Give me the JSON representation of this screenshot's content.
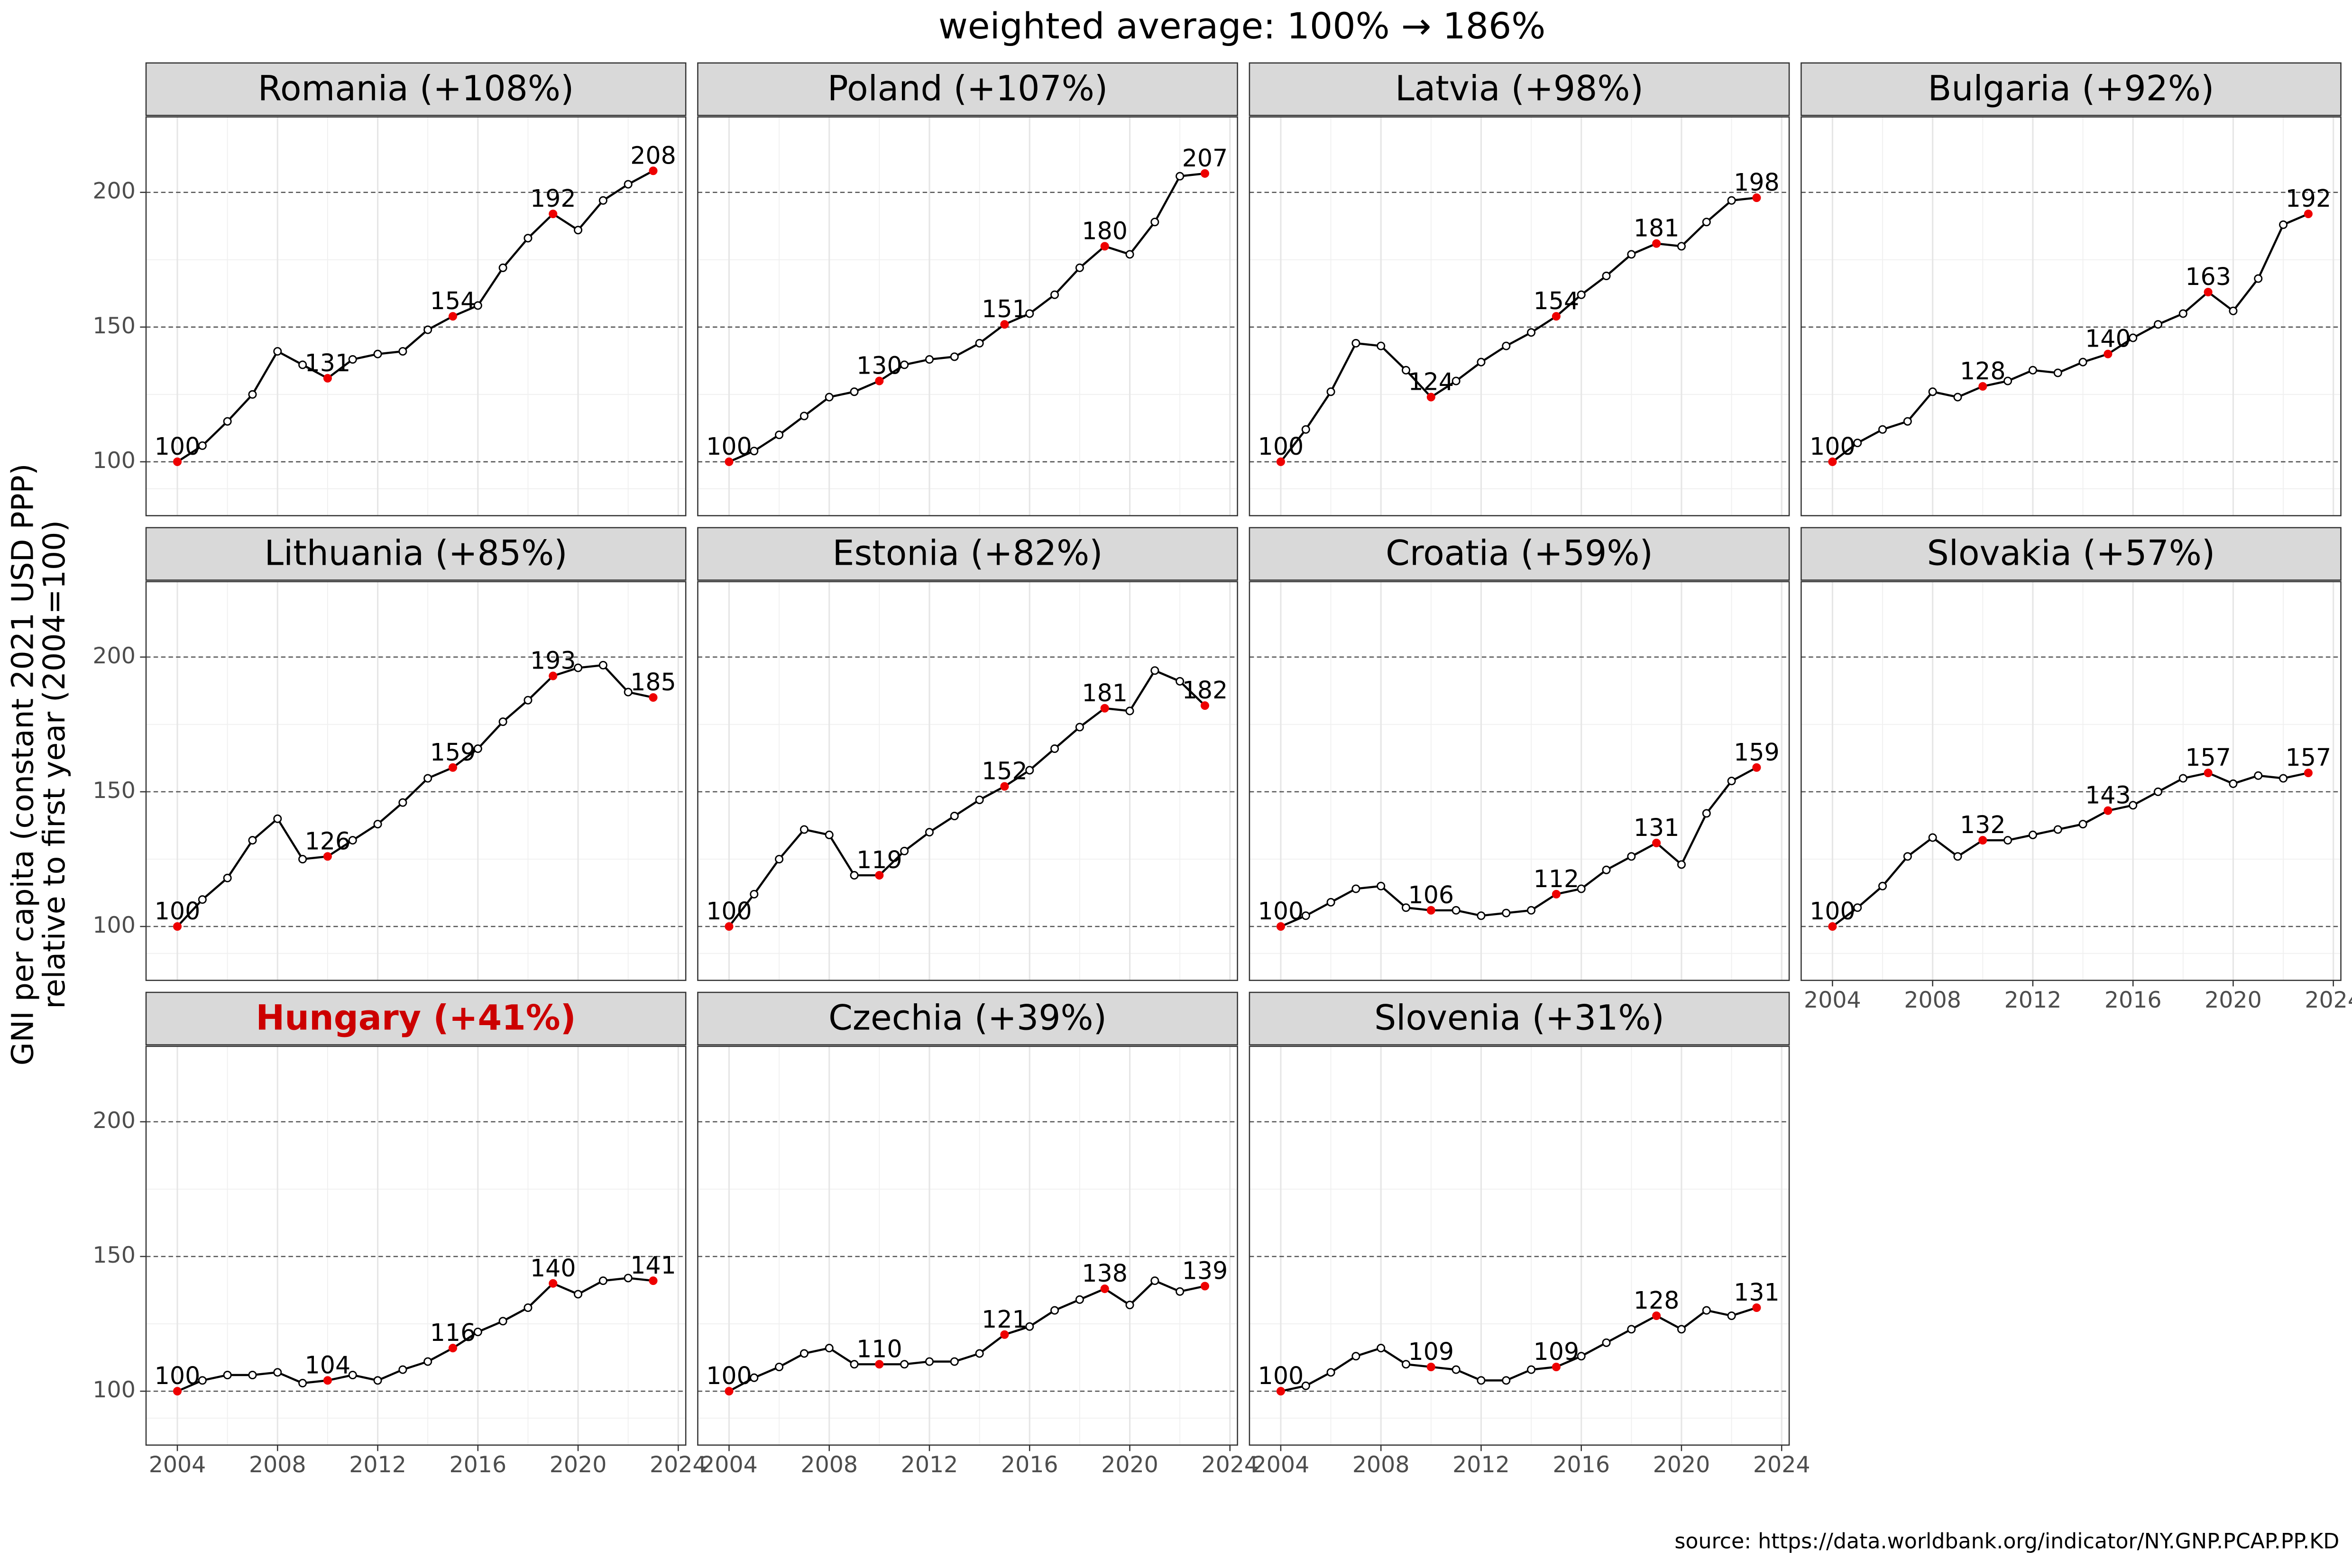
{
  "title": "weighted average: 100% → 186%",
  "ylabel": [
    "GNI per capita (constant 2021 USD PPP)",
    "relative to first year (2004=100)"
  ],
  "source": "source: https://data.worldbank.org/indicator/NY.GNP.PCAP.PP.KD",
  "line_color": "#000000",
  "highlight_color": "#ee0000",
  "highlight_x": [
    2004,
    2010,
    2015,
    2019,
    2023
  ],
  "chart_data": [
    {
      "type": "line",
      "title": "Romania (+108%)",
      "title_color": "#000000",
      "x": [
        2004,
        2005,
        2006,
        2007,
        2008,
        2009,
        2010,
        2011,
        2012,
        2013,
        2014,
        2015,
        2016,
        2017,
        2018,
        2019,
        2020,
        2021,
        2022,
        2023
      ],
      "values": [
        100,
        106,
        115,
        125,
        141,
        136,
        131,
        138,
        140,
        141,
        149,
        154,
        158,
        172,
        183,
        192,
        186,
        197,
        203,
        208
      ],
      "xlim": [
        2002.75,
        2024.3
      ],
      "ylim": [
        80,
        228
      ],
      "xticks": [
        2004,
        2008,
        2012,
        2016,
        2020,
        2024
      ],
      "yticks": [
        100,
        150,
        200
      ],
      "grid": true
    },
    {
      "type": "line",
      "title": "Poland (+107%)",
      "title_color": "#000000",
      "x": [
        2004,
        2005,
        2006,
        2007,
        2008,
        2009,
        2010,
        2011,
        2012,
        2013,
        2014,
        2015,
        2016,
        2017,
        2018,
        2019,
        2020,
        2021,
        2022,
        2023
      ],
      "values": [
        100,
        104,
        110,
        117,
        124,
        126,
        130,
        136,
        138,
        139,
        144,
        151,
        155,
        162,
        172,
        180,
        177,
        189,
        206,
        207
      ],
      "xlim": [
        2002.75,
        2024.3
      ],
      "ylim": [
        80,
        228
      ],
      "xticks": [
        2004,
        2008,
        2012,
        2016,
        2020,
        2024
      ],
      "yticks": [
        100,
        150,
        200
      ],
      "grid": true
    },
    {
      "type": "line",
      "title": "Latvia (+98%)",
      "title_color": "#000000",
      "x": [
        2004,
        2005,
        2006,
        2007,
        2008,
        2009,
        2010,
        2011,
        2012,
        2013,
        2014,
        2015,
        2016,
        2017,
        2018,
        2019,
        2020,
        2021,
        2022,
        2023
      ],
      "values": [
        100,
        112,
        126,
        144,
        143,
        134,
        124,
        130,
        137,
        143,
        148,
        154,
        162,
        169,
        177,
        181,
        180,
        189,
        197,
        198
      ],
      "xlim": [
        2002.75,
        2024.3
      ],
      "ylim": [
        80,
        228
      ],
      "xticks": [
        2004,
        2008,
        2012,
        2016,
        2020,
        2024
      ],
      "yticks": [
        100,
        150,
        200
      ],
      "grid": true
    },
    {
      "type": "line",
      "title": "Bulgaria (+92%)",
      "title_color": "#000000",
      "x": [
        2004,
        2005,
        2006,
        2007,
        2008,
        2009,
        2010,
        2011,
        2012,
        2013,
        2014,
        2015,
        2016,
        2017,
        2018,
        2019,
        2020,
        2021,
        2022,
        2023
      ],
      "values": [
        100,
        107,
        112,
        115,
        126,
        124,
        128,
        130,
        134,
        133,
        137,
        140,
        146,
        151,
        155,
        163,
        156,
        168,
        188,
        192
      ],
      "xlim": [
        2002.75,
        2024.3
      ],
      "ylim": [
        80,
        228
      ],
      "xticks": [
        2004,
        2008,
        2012,
        2016,
        2020,
        2024
      ],
      "yticks": [
        100,
        150,
        200
      ],
      "grid": true
    },
    {
      "type": "line",
      "title": "Lithuania (+85%)",
      "title_color": "#000000",
      "x": [
        2004,
        2005,
        2006,
        2007,
        2008,
        2009,
        2010,
        2011,
        2012,
        2013,
        2014,
        2015,
        2016,
        2017,
        2018,
        2019,
        2020,
        2021,
        2022,
        2023
      ],
      "values": [
        100,
        110,
        118,
        132,
        140,
        125,
        126,
        132,
        138,
        146,
        155,
        159,
        166,
        176,
        184,
        193,
        196,
        197,
        187,
        185
      ],
      "xlim": [
        2002.75,
        2024.3
      ],
      "ylim": [
        80,
        228
      ],
      "xticks": [
        2004,
        2008,
        2012,
        2016,
        2020,
        2024
      ],
      "yticks": [
        100,
        150,
        200
      ],
      "grid": true
    },
    {
      "type": "line",
      "title": "Estonia (+82%)",
      "title_color": "#000000",
      "x": [
        2004,
        2005,
        2006,
        2007,
        2008,
        2009,
        2010,
        2011,
        2012,
        2013,
        2014,
        2015,
        2016,
        2017,
        2018,
        2019,
        2020,
        2021,
        2022,
        2023
      ],
      "values": [
        100,
        112,
        125,
        136,
        134,
        119,
        119,
        128,
        135,
        141,
        147,
        152,
        158,
        166,
        174,
        181,
        180,
        195,
        191,
        182
      ],
      "xlim": [
        2002.75,
        2024.3
      ],
      "ylim": [
        80,
        228
      ],
      "xticks": [
        2004,
        2008,
        2012,
        2016,
        2020,
        2024
      ],
      "yticks": [
        100,
        150,
        200
      ],
      "grid": true
    },
    {
      "type": "line",
      "title": "Croatia (+59%)",
      "title_color": "#000000",
      "x": [
        2004,
        2005,
        2006,
        2007,
        2008,
        2009,
        2010,
        2011,
        2012,
        2013,
        2014,
        2015,
        2016,
        2017,
        2018,
        2019,
        2020,
        2021,
        2022,
        2023
      ],
      "values": [
        100,
        104,
        109,
        114,
        115,
        107,
        106,
        106,
        104,
        105,
        106,
        112,
        114,
        121,
        126,
        131,
        123,
        142,
        154,
        159
      ],
      "xlim": [
        2002.75,
        2024.3
      ],
      "ylim": [
        80,
        228
      ],
      "xticks": [
        2004,
        2008,
        2012,
        2016,
        2020,
        2024
      ],
      "yticks": [
        100,
        150,
        200
      ],
      "grid": true
    },
    {
      "type": "line",
      "title": "Slovakia (+57%)",
      "title_color": "#000000",
      "x": [
        2004,
        2005,
        2006,
        2007,
        2008,
        2009,
        2010,
        2011,
        2012,
        2013,
        2014,
        2015,
        2016,
        2017,
        2018,
        2019,
        2020,
        2021,
        2022,
        2023
      ],
      "values": [
        100,
        107,
        115,
        126,
        133,
        126,
        132,
        132,
        134,
        136,
        138,
        143,
        145,
        150,
        155,
        157,
        153,
        156,
        155,
        157
      ],
      "xlim": [
        2002.75,
        2024.3
      ],
      "ylim": [
        80,
        228
      ],
      "xticks": [
        2004,
        2008,
        2012,
        2016,
        2020,
        2024
      ],
      "yticks": [
        100,
        150,
        200
      ],
      "grid": true
    },
    {
      "type": "line",
      "title": "Hungary (+41%)",
      "title_color": "#cc0000",
      "x": [
        2004,
        2005,
        2006,
        2007,
        2008,
        2009,
        2010,
        2011,
        2012,
        2013,
        2014,
        2015,
        2016,
        2017,
        2018,
        2019,
        2020,
        2021,
        2022,
        2023
      ],
      "values": [
        100,
        104,
        106,
        106,
        107,
        103,
        104,
        106,
        104,
        108,
        111,
        116,
        122,
        126,
        131,
        140,
        136,
        141,
        142,
        141
      ],
      "xlim": [
        2002.75,
        2024.3
      ],
      "ylim": [
        80,
        228
      ],
      "xticks": [
        2004,
        2008,
        2012,
        2016,
        2020,
        2024
      ],
      "yticks": [
        100,
        150,
        200
      ],
      "grid": true
    },
    {
      "type": "line",
      "title": "Czechia (+39%)",
      "title_color": "#000000",
      "x": [
        2004,
        2005,
        2006,
        2007,
        2008,
        2009,
        2010,
        2011,
        2012,
        2013,
        2014,
        2015,
        2016,
        2017,
        2018,
        2019,
        2020,
        2021,
        2022,
        2023
      ],
      "values": [
        100,
        105,
        109,
        114,
        116,
        110,
        110,
        110,
        111,
        111,
        114,
        121,
        124,
        130,
        134,
        138,
        132,
        141,
        137,
        139
      ],
      "xlim": [
        2002.75,
        2024.3
      ],
      "ylim": [
        80,
        228
      ],
      "xticks": [
        2004,
        2008,
        2012,
        2016,
        2020,
        2024
      ],
      "yticks": [
        100,
        150,
        200
      ],
      "grid": true
    },
    {
      "type": "line",
      "title": "Slovenia (+31%)",
      "title_color": "#000000",
      "x": [
        2004,
        2005,
        2006,
        2007,
        2008,
        2009,
        2010,
        2011,
        2012,
        2013,
        2014,
        2015,
        2016,
        2017,
        2018,
        2019,
        2020,
        2021,
        2022,
        2023
      ],
      "values": [
        100,
        102,
        107,
        113,
        116,
        110,
        109,
        108,
        104,
        104,
        108,
        109,
        113,
        118,
        123,
        128,
        123,
        130,
        128,
        131
      ],
      "xlim": [
        2002.75,
        2024.3
      ],
      "ylim": [
        80,
        228
      ],
      "xticks": [
        2004,
        2008,
        2012,
        2016,
        2020,
        2024
      ],
      "yticks": [
        100,
        150,
        200
      ],
      "grid": true
    }
  ]
}
